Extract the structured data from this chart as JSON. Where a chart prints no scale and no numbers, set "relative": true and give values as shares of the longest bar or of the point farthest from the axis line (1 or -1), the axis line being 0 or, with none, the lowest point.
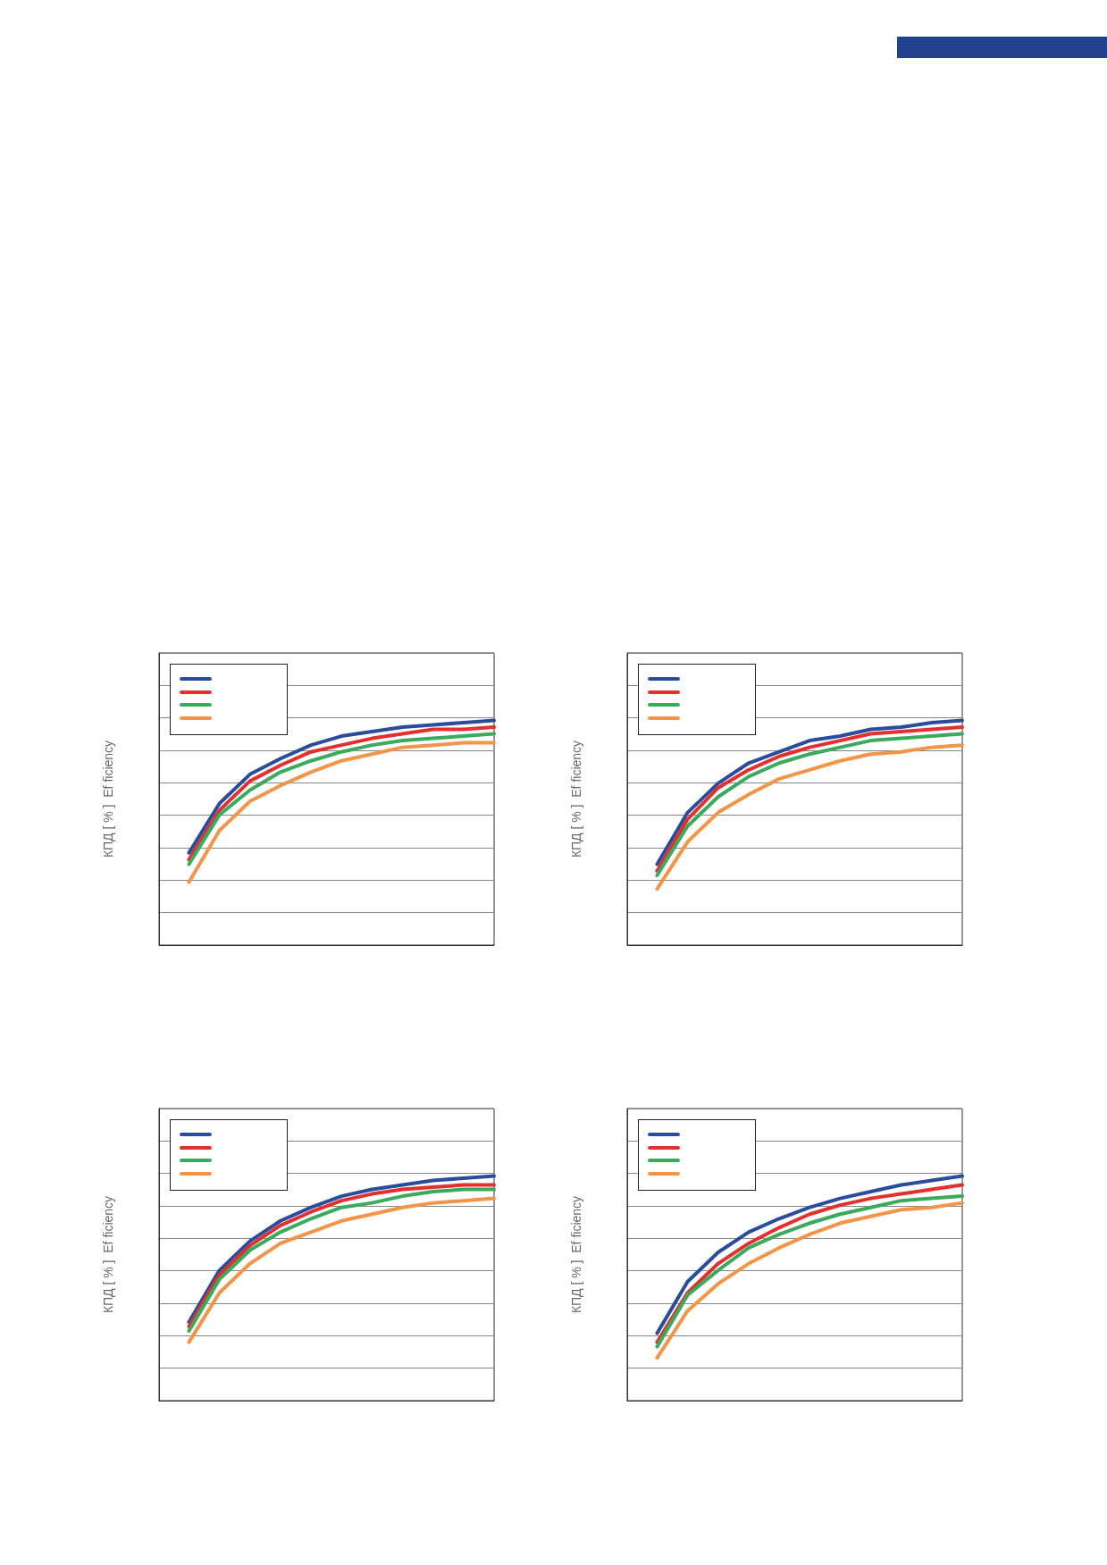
{
  "chart_data": [
    {
      "type": "line",
      "ylabel": "КПД [ % ]  Ef ficiency",
      "relative": true,
      "grid": "y",
      "marker": "none",
      "line_style": "solid",
      "categories": [
        null,
        null,
        null,
        null,
        null,
        null,
        null,
        null,
        null,
        null,
        null
      ],
      "series": [
        {
          "color": "#2a4c9c",
          "values": [
            0.41,
            0.63,
            0.76,
            0.83,
            0.89,
            0.93,
            0.95,
            0.97,
            0.98,
            0.99,
            1
          ]
        },
        {
          "color": "#e3302f",
          "values": [
            0.38,
            0.6,
            0.73,
            0.8,
            0.86,
            0.89,
            0.92,
            0.94,
            0.96,
            0.96,
            0.97
          ]
        },
        {
          "color": "#3aaa5c",
          "values": [
            0.36,
            0.58,
            0.69,
            0.77,
            0.82,
            0.86,
            0.89,
            0.91,
            0.92,
            0.93,
            0.94
          ]
        },
        {
          "color": "#f39548",
          "values": [
            0.28,
            0.51,
            0.64,
            0.71,
            0.77,
            0.82,
            0.85,
            0.88,
            0.89,
            0.9,
            0.9
          ]
        }
      ]
    },
    {
      "type": "line",
      "ylabel": "КПД [ % ]  Ef ficiency",
      "relative": true,
      "grid": "y",
      "marker": "none",
      "line_style": "solid",
      "categories": [
        null,
        null,
        null,
        null,
        null,
        null,
        null,
        null,
        null,
        null,
        null
      ],
      "series": [
        {
          "color": "#2a4c9c",
          "values": [
            0.36,
            0.59,
            0.72,
            0.81,
            0.86,
            0.91,
            0.93,
            0.96,
            0.97,
            0.99,
            1
          ]
        },
        {
          "color": "#e3302f",
          "values": [
            0.33,
            0.56,
            0.7,
            0.78,
            0.84,
            0.88,
            0.91,
            0.94,
            0.95,
            0.96,
            0.97
          ]
        },
        {
          "color": "#3aaa5c",
          "values": [
            0.31,
            0.53,
            0.66,
            0.75,
            0.81,
            0.85,
            0.88,
            0.91,
            0.92,
            0.93,
            0.94
          ]
        },
        {
          "color": "#f39548",
          "values": [
            0.25,
            0.46,
            0.59,
            0.67,
            0.74,
            0.78,
            0.82,
            0.85,
            0.86,
            0.88,
            0.89
          ]
        }
      ]
    },
    {
      "type": "line",
      "ylabel": "КПД [ % ]  Ef ficiency",
      "relative": true,
      "grid": "y",
      "marker": "none",
      "line_style": "solid",
      "categories": [
        null,
        null,
        null,
        null,
        null,
        null,
        null,
        null,
        null,
        null,
        null
      ],
      "series": [
        {
          "color": "#2a4c9c",
          "values": [
            0.35,
            0.58,
            0.71,
            0.8,
            0.86,
            0.91,
            0.94,
            0.96,
            0.98,
            0.99,
            1
          ]
        },
        {
          "color": "#e3302f",
          "values": [
            0.33,
            0.56,
            0.69,
            0.78,
            0.84,
            0.89,
            0.92,
            0.94,
            0.95,
            0.96,
            0.96
          ]
        },
        {
          "color": "#3aaa5c",
          "values": [
            0.31,
            0.54,
            0.67,
            0.75,
            0.81,
            0.86,
            0.88,
            0.91,
            0.93,
            0.94,
            0.94
          ]
        },
        {
          "color": "#f39548",
          "values": [
            0.26,
            0.48,
            0.61,
            0.7,
            0.75,
            0.8,
            0.83,
            0.86,
            0.88,
            0.89,
            0.9
          ]
        }
      ]
    },
    {
      "type": "line",
      "ylabel": "КПД [ % ]  Ef ficiency",
      "relative": true,
      "grid": "y",
      "marker": "none",
      "line_style": "solid",
      "categories": [
        null,
        null,
        null,
        null,
        null,
        null,
        null,
        null,
        null,
        null,
        null
      ],
      "series": [
        {
          "color": "#2a4c9c",
          "values": [
            0.3,
            0.53,
            0.66,
            0.75,
            0.81,
            0.86,
            0.9,
            0.93,
            0.96,
            0.98,
            1
          ]
        },
        {
          "color": "#e3302f",
          "values": [
            0.26,
            0.48,
            0.61,
            0.7,
            0.77,
            0.83,
            0.87,
            0.9,
            0.92,
            0.94,
            0.96
          ]
        },
        {
          "color": "#3aaa5c",
          "values": [
            0.24,
            0.47,
            0.58,
            0.68,
            0.74,
            0.79,
            0.83,
            0.86,
            0.89,
            0.9,
            0.91
          ]
        },
        {
          "color": "#f39548",
          "values": [
            0.19,
            0.4,
            0.52,
            0.61,
            0.68,
            0.74,
            0.79,
            0.82,
            0.85,
            0.86,
            0.88
          ]
        }
      ]
    }
  ]
}
